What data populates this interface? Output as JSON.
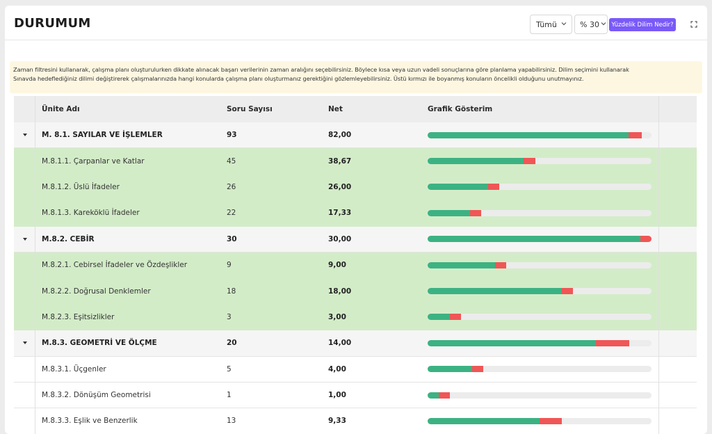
{
  "header": {
    "title": "DURUMUM",
    "time_filter": "Tümü",
    "percent_filter": "% 30",
    "help_button": "Yüzdelik Dilim Nedir?"
  },
  "info_lines": [
    "Zaman filtresini kullanarak, çalışma planı oluşturulurken dikkate alınacak başarı verilerinin zaman aralığını seçebilirsiniz. Böylece kısa veya uzun vadeli sonuçlarına göre planlama yapabilirsiniz. Dilim seçimini kullanarak",
    "Sınavda hedeflediğiniz dilimi değiştirerek çalışmalarınızda hangi konularda çalışma planı oluşturmanız gerektiğini gözlemleyebilirsiniz. Üstü kırmızı ile boyanmış konuların öncelikli olduğunu unutmayınız."
  ],
  "columns": {
    "unit": "Ünite Adı",
    "count": "Soru Sayısı",
    "net": "Net",
    "chart": "Grafik Gösterim"
  },
  "colors": {
    "green": "#3cb283",
    "red": "#f05656",
    "row_highlight": "#d3ecc8",
    "accent": "#7a5af8"
  },
  "rows": [
    {
      "type": "group",
      "name": "M. 8.1. SAYILAR VE İŞLEMLER",
      "count": "93",
      "net": "82,00",
      "green": 0.898,
      "red": 0.06
    },
    {
      "type": "sub-green",
      "name": "M.8.1.1. Çarpanlar ve Katlar",
      "count": "45",
      "net": "38,67",
      "green": 0.43,
      "red": 0.05
    },
    {
      "type": "sub-green",
      "name": "M.8.1.2. Üslü İfadeler",
      "count": "26",
      "net": "26,00",
      "green": 0.27,
      "red": 0.05
    },
    {
      "type": "sub-green",
      "name": "M.8.1.3. Kareköklü İfadeler",
      "count": "22",
      "net": "17,33",
      "green": 0.19,
      "red": 0.05
    },
    {
      "type": "group",
      "name": "M.8.2. CEBİR",
      "count": "30",
      "net": "30,00",
      "green": 0.95,
      "red": 0.05
    },
    {
      "type": "sub-green",
      "name": "M.8.2.1. Cebirsel İfadeler ve Özdeşlikler",
      "count": "9",
      "net": "9,00",
      "green": 0.3,
      "red": 0.05
    },
    {
      "type": "sub-green",
      "name": "M.8.2.2. Doğrusal Denklemler",
      "count": "18",
      "net": "18,00",
      "green": 0.6,
      "red": 0.05
    },
    {
      "type": "sub-green",
      "name": "M.8.2.3. Eşitsizlikler",
      "count": "3",
      "net": "3,00",
      "green": 0.1,
      "red": 0.05
    },
    {
      "type": "group",
      "name": "M.8.3. GEOMETRİ VE ÖLÇME",
      "count": "20",
      "net": "14,00",
      "green": 0.75,
      "red": 0.15
    },
    {
      "type": "sub-plain",
      "name": "M.8.3.1. Üçgenler",
      "count": "5",
      "net": "4,00",
      "green": 0.2,
      "red": 0.05
    },
    {
      "type": "sub-plain",
      "name": "M.8.3.2. Dönüşüm Geometrisi",
      "count": "1",
      "net": "1,00",
      "green": 0.05,
      "red": 0.05
    },
    {
      "type": "sub-plain",
      "name": "M.8.3.3. Eşlik ve Benzerlik",
      "count": "13",
      "net": "9,33",
      "green": 0.5,
      "red": 0.1
    }
  ]
}
